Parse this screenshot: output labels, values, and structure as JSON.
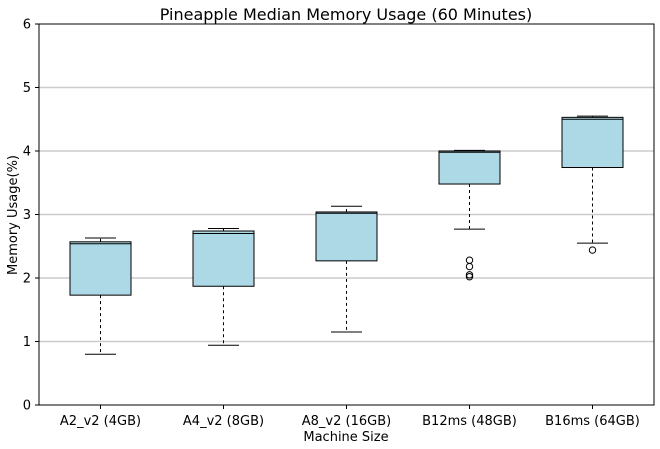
{
  "chart_data": {
    "type": "box",
    "title": "Pineapple Median Memory Usage (60 Minutes)",
    "xlabel": "Machine Size",
    "ylabel": "Memory Usage(%)",
    "ylim": [
      0,
      6
    ],
    "yticks": [
      0,
      1,
      2,
      3,
      4,
      5,
      6
    ],
    "grid": "horizontal",
    "box_color": "#add8e6",
    "categories": [
      "A2_v2 (4GB)",
      "A4_v2 (8GB)",
      "A8_v2 (16GB)",
      "B12ms (48GB)",
      "B16ms (64GB)"
    ],
    "boxes": [
      {
        "whisker_low": 0.8,
        "q1": 1.73,
        "median": 2.54,
        "q3": 2.57,
        "whisker_high": 2.63,
        "outliers": []
      },
      {
        "whisker_low": 0.94,
        "q1": 1.87,
        "median": 2.7,
        "q3": 2.74,
        "whisker_high": 2.78,
        "outliers": []
      },
      {
        "whisker_low": 1.15,
        "q1": 2.27,
        "median": 3.02,
        "q3": 3.04,
        "whisker_high": 3.13,
        "outliers": []
      },
      {
        "whisker_low": 2.77,
        "q1": 3.48,
        "median": 3.98,
        "q3": 4.0,
        "whisker_high": 4.01,
        "outliers": [
          2.28,
          2.18,
          2.05,
          2.02
        ]
      },
      {
        "whisker_low": 2.55,
        "q1": 3.74,
        "median": 4.5,
        "q3": 4.53,
        "whisker_high": 4.55,
        "outliers": [
          2.44
        ]
      }
    ]
  }
}
